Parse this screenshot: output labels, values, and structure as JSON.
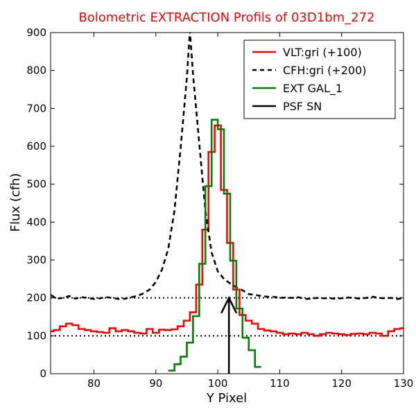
{
  "chart_data": {
    "type": "line",
    "title": "Bolometric EXTRACTION Profils of 03D1bm_272",
    "title_color": "#ff0000",
    "xlabel": "Y Pixel",
    "ylabel": "Flux (cfh)",
    "xlim": [
      73,
      130
    ],
    "ylim": [
      0,
      900
    ],
    "xticks": [
      80,
      90,
      100,
      110,
      120,
      130
    ],
    "yticks": [
      0,
      100,
      200,
      300,
      400,
      500,
      600,
      700,
      800,
      900
    ],
    "grid": false,
    "legend_position": "top-right",
    "reference_lines": [
      {
        "y": 100,
        "style": "dotted",
        "color": "#000000"
      },
      {
        "y": 200,
        "style": "dotted",
        "color": "#000000"
      }
    ],
    "series": [
      {
        "name": "VLT:gri (+100)",
        "color": "#ff0000",
        "style": "steps",
        "x": [
          73,
          74,
          75,
          76,
          77,
          78,
          79,
          80,
          81,
          82,
          83,
          84,
          85,
          86,
          87,
          88,
          89,
          90,
          91,
          92,
          93,
          94,
          95,
          96,
          97,
          98,
          99,
          100,
          101,
          102,
          103,
          104,
          105,
          106,
          107,
          108,
          109,
          110,
          111,
          112,
          113,
          114,
          115,
          116,
          117,
          118,
          119,
          120,
          121,
          122,
          123,
          124,
          125,
          126,
          127,
          128,
          129,
          130
        ],
        "y": [
          112,
          115,
          125,
          132,
          128,
          118,
          115,
          112,
          110,
          108,
          120,
          112,
          115,
          112,
          108,
          106,
          118,
          108,
          116,
          115,
          117,
          125,
          140,
          162,
          235,
          380,
          585,
          655,
          485,
          345,
          222,
          155,
          140,
          132,
          118,
          114,
          112,
          108,
          104,
          106,
          104,
          108,
          104,
          100,
          104,
          108,
          106,
          104,
          102,
          105,
          106,
          104,
          108,
          106,
          100,
          112,
          118,
          120
        ]
      },
      {
        "name": "CFH:gri (+200)",
        "color": "#000000",
        "style": "dashed",
        "x": [
          73,
          74,
          75,
          76,
          77,
          78,
          79,
          80,
          81,
          82,
          83,
          84,
          85,
          86,
          87,
          88,
          89,
          90,
          91,
          92,
          93,
          94,
          95,
          95.5,
          96,
          97,
          98,
          99,
          100,
          101,
          102,
          103,
          104,
          105,
          106,
          107,
          108,
          109,
          110,
          111,
          112,
          113,
          114,
          115,
          116,
          117,
          118,
          119,
          120,
          121,
          122,
          123,
          124,
          125,
          126,
          127,
          128,
          129,
          130
        ],
        "y": [
          208,
          198,
          200,
          205,
          198,
          202,
          200,
          197,
          199,
          202,
          200,
          197,
          198,
          202,
          205,
          212,
          222,
          242,
          275,
          330,
          430,
          595,
          780,
          905,
          790,
          610,
          430,
          320,
          270,
          250,
          238,
          228,
          220,
          210,
          208,
          205,
          203,
          203,
          200,
          201,
          200,
          202,
          197,
          198,
          200,
          199,
          199,
          198,
          199,
          201,
          200,
          198,
          200,
          203,
          200,
          199,
          200,
          197,
          200
        ]
      },
      {
        "name": "EXT GAL_1",
        "color": "#008000",
        "style": "steps",
        "x": [
          92.5,
          93.5,
          94.5,
          95.5,
          96.5,
          97.5,
          98.5,
          99.5,
          100.5,
          101.5,
          102.5,
          103.5,
          104.5,
          105.5,
          106.5
        ],
        "y": [
          8,
          25,
          45,
          82,
          152,
          290,
          495,
          670,
          645,
          475,
          298,
          172,
          95,
          62,
          18
        ]
      },
      {
        "name": "PSF SN",
        "color": "#000000",
        "style": "arrow",
        "x": 101.8,
        "y_from": 0,
        "y_to": 200
      }
    ]
  }
}
